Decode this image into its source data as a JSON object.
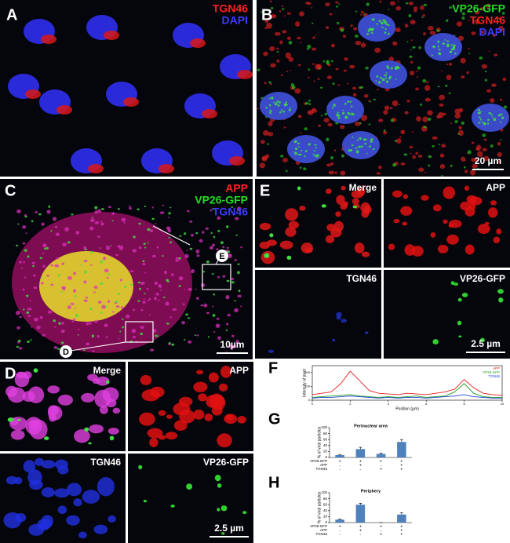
{
  "figure": {
    "panel_a": {
      "letter": "A",
      "channels": [
        {
          "name": "TGN46",
          "color": "#ff2020"
        },
        {
          "name": "DAPI",
          "color": "#3b3bff"
        }
      ]
    },
    "panel_b": {
      "letter": "B",
      "channels": [
        {
          "name": "VP26-GFP",
          "color": "#22dd22"
        },
        {
          "name": "TGN46",
          "color": "#ff2020"
        },
        {
          "name": "DAPI",
          "color": "#3b3bff"
        }
      ],
      "scale": "20 µm"
    },
    "panel_c": {
      "letter": "C",
      "channels": [
        {
          "name": "APP",
          "color": "#ff2020"
        },
        {
          "name": "VP26-GFP",
          "color": "#22dd22"
        },
        {
          "name": "TGN46",
          "color": "#3b3bff"
        }
      ],
      "scale": "10µm",
      "callouts": [
        "E",
        "D"
      ]
    },
    "panel_d": {
      "letter": "D",
      "subpanels": [
        "Merge",
        "APP",
        "TGN46",
        "VP26-GFP"
      ],
      "scale": "2.5 µm"
    },
    "panel_e": {
      "letter": "E",
      "subpanels": [
        "Merge",
        "APP",
        "TGN46",
        "VP26-GFP"
      ],
      "scale": "2.5 µm"
    },
    "panel_f": {
      "letter": "F"
    },
    "panel_g": {
      "letter": "G"
    },
    "panel_h": {
      "letter": "H"
    }
  },
  "chart_data": [
    {
      "type": "line",
      "xlabel": "Position (µm)",
      "ylabel": "Intensity of pixel",
      "x": [
        0,
        0.5,
        1,
        1.5,
        2,
        2.5,
        3,
        3.5,
        4,
        4.5,
        5,
        5.5,
        6,
        6.5,
        7,
        7.5,
        8,
        8.5,
        9,
        9.5,
        10
      ],
      "xlim": [
        0,
        10
      ],
      "xticks": [
        0,
        2,
        4,
        6,
        8,
        10
      ],
      "ylim": [
        0,
        250
      ],
      "yticks": [
        0,
        100,
        200
      ],
      "series": [
        {
          "name": "APP",
          "color": "#e02020",
          "values": [
            40,
            50,
            60,
            120,
            210,
            140,
            70,
            50,
            45,
            40,
            50,
            45,
            40,
            50,
            60,
            80,
            150,
            90,
            50,
            40,
            35
          ]
        },
        {
          "name": "VP26-GFP",
          "color": "#20a020",
          "values": [
            20,
            25,
            30,
            35,
            40,
            30,
            25,
            20,
            25,
            20,
            25,
            30,
            20,
            25,
            30,
            60,
            120,
            50,
            25,
            20,
            20
          ]
        },
        {
          "name": "TGN46",
          "color": "#2040d0",
          "values": [
            15,
            20,
            20,
            25,
            30,
            25,
            20,
            15,
            20,
            15,
            20,
            20,
            15,
            20,
            25,
            30,
            40,
            25,
            20,
            15,
            15
          ]
        }
      ]
    },
    {
      "type": "bar",
      "title": "Perinuclear area",
      "ylabel": "% of viral particles",
      "color": "#4f81bd",
      "values": [
        8,
        28,
        12,
        52
      ],
      "errors": [
        2,
        6,
        3,
        8
      ],
      "ylim": [
        0,
        100
      ],
      "yticks": [
        0,
        20,
        40,
        60,
        80,
        100
      ],
      "rows": [
        {
          "label": "VP26-GFP",
          "signs": [
            "+",
            "+",
            "+",
            "+"
          ]
        },
        {
          "label": "APP",
          "signs": [
            "-",
            "+",
            "-",
            "+"
          ]
        },
        {
          "label": "TGN46",
          "signs": [
            "-",
            "-",
            "+",
            "+"
          ]
        }
      ]
    },
    {
      "type": "bar",
      "title": "Periphery",
      "ylabel": "% of viral particles",
      "color": "#4f81bd",
      "values": [
        10,
        60,
        0,
        27
      ],
      "errors": [
        2,
        5,
        0,
        6
      ],
      "ylim": [
        0,
        100
      ],
      "yticks": [
        0,
        20,
        40,
        60,
        80,
        100
      ],
      "rows": [
        {
          "label": "VP26-GFP",
          "signs": [
            "+",
            "+",
            "+",
            "+"
          ]
        },
        {
          "label": "APP",
          "signs": [
            "-",
            "+",
            "-",
            "+"
          ]
        },
        {
          "label": "TGN46",
          "signs": [
            "-",
            "-",
            "+",
            "+"
          ]
        }
      ]
    }
  ]
}
